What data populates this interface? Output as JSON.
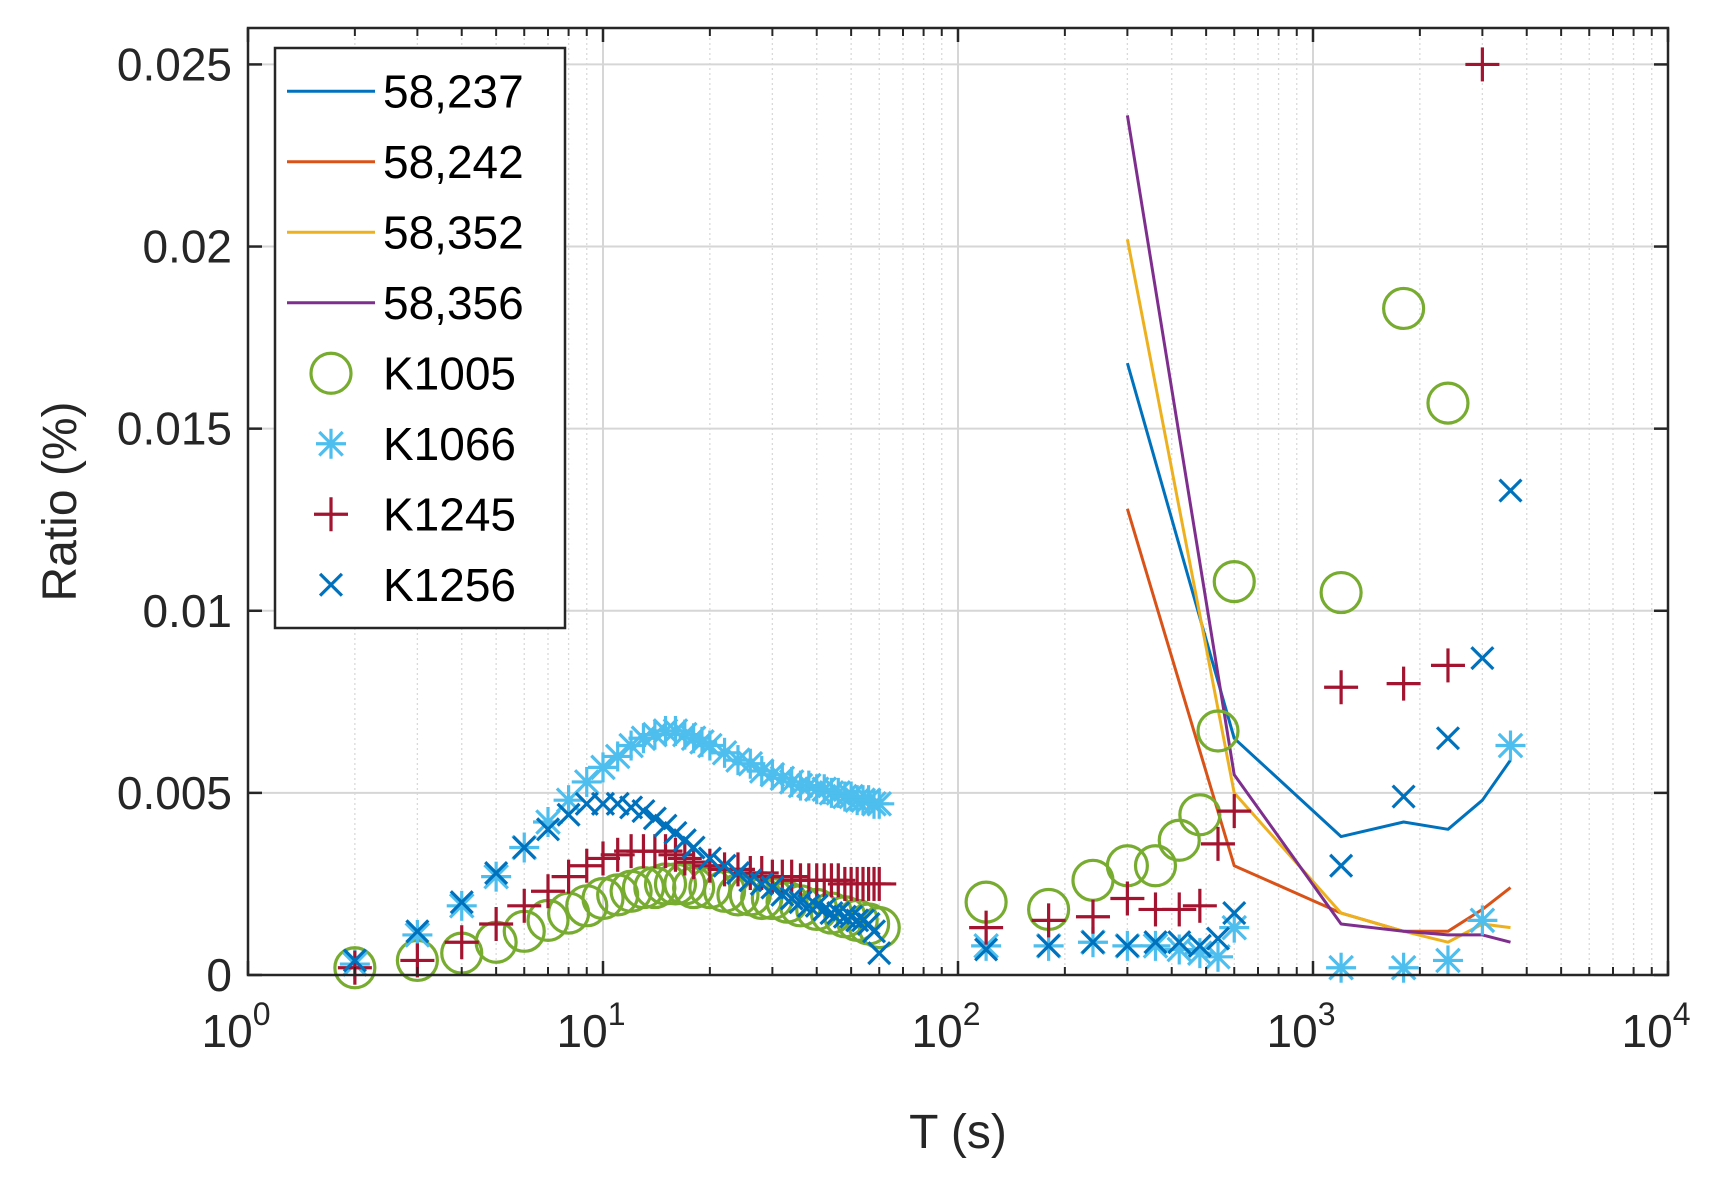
{
  "chart_data": {
    "type": "scatter",
    "title": "",
    "xlabel": "T (s)",
    "ylabel": "Ratio (%)",
    "xscale": "log",
    "xlim": [
      1,
      10000
    ],
    "ylim": [
      0,
      0.026
    ],
    "grid": true,
    "legend_position": "top-left",
    "xticks": [
      1,
      10,
      100,
      1000,
      10000
    ],
    "xtick_labels": [
      {
        "base": "10",
        "exp": "0"
      },
      {
        "base": "10",
        "exp": "1"
      },
      {
        "base": "10",
        "exp": "2"
      },
      {
        "base": "10",
        "exp": "3"
      },
      {
        "base": "10",
        "exp": "4"
      }
    ],
    "yticks": [
      0,
      0.005,
      0.01,
      0.015,
      0.02,
      0.025
    ],
    "ytick_labels": [
      "0",
      "0.005",
      "0.01",
      "0.015",
      "0.02",
      "0.025"
    ],
    "series": [
      {
        "name": "58,237",
        "kind": "line",
        "color": "#0072BD",
        "x": [
          300,
          600,
          1200,
          1800,
          2400,
          3000,
          3600
        ],
        "y": [
          0.0168,
          0.0065,
          0.0038,
          0.0042,
          0.004,
          0.0048,
          0.0059
        ]
      },
      {
        "name": "58,242",
        "kind": "line",
        "color": "#D95319",
        "x": [
          300,
          600,
          1200,
          1800,
          2400,
          3000,
          3600
        ],
        "y": [
          0.0128,
          0.003,
          0.0017,
          0.0012,
          0.0012,
          0.0018,
          0.0024
        ]
      },
      {
        "name": "58,352",
        "kind": "line",
        "color": "#EDB120",
        "x": [
          300,
          600,
          1200,
          1800,
          2400,
          3000,
          3600
        ],
        "y": [
          0.0202,
          0.005,
          0.0017,
          0.0012,
          0.0009,
          0.0014,
          0.0013
        ]
      },
      {
        "name": "58,356",
        "kind": "line",
        "color": "#7E2F8E",
        "x": [
          300,
          600,
          1200,
          1800,
          2400,
          3000,
          3600
        ],
        "y": [
          0.0236,
          0.0055,
          0.0014,
          0.0012,
          0.0011,
          0.0011,
          0.0009
        ]
      },
      {
        "name": "K1005",
        "kind": "marker",
        "marker": "circle",
        "color": "#77AC30",
        "x": [
          2,
          3,
          4,
          5,
          6,
          7,
          8,
          9,
          10,
          11,
          12,
          13,
          14,
          15,
          16,
          17,
          18,
          20,
          22,
          24,
          26,
          28,
          30,
          33,
          36,
          40,
          44,
          48,
          52,
          56,
          60,
          120,
          180,
          240,
          300,
          360,
          420,
          480,
          540,
          600,
          1200,
          1800,
          2400
        ],
        "y": [
          0.0002,
          0.0004,
          0.0006,
          0.0009,
          0.0012,
          0.0015,
          0.0017,
          0.0019,
          0.0021,
          0.0022,
          0.0023,
          0.0024,
          0.0024,
          0.0025,
          0.0025,
          0.0025,
          0.0024,
          0.0024,
          0.0023,
          0.0022,
          0.0022,
          0.0021,
          0.0021,
          0.002,
          0.0019,
          0.0018,
          0.0017,
          0.0016,
          0.0015,
          0.0014,
          0.0013,
          0.002,
          0.0018,
          0.0026,
          0.003,
          0.003,
          0.0037,
          0.0044,
          0.0067,
          0.0108,
          0.0105,
          0.0183,
          0.0157
        ]
      },
      {
        "name": "K1066",
        "kind": "marker",
        "marker": "asterisk",
        "color": "#4DBEEE",
        "x": [
          2,
          3,
          4,
          5,
          6,
          7,
          8,
          9,
          10,
          11,
          12,
          13,
          14,
          15,
          16,
          17,
          18,
          19,
          20,
          22,
          24,
          26,
          28,
          30,
          32,
          34,
          36,
          38,
          40,
          42,
          44,
          46,
          48,
          50,
          52,
          54,
          56,
          58,
          60,
          120,
          180,
          240,
          300,
          360,
          420,
          480,
          540,
          600,
          1200,
          1800,
          2400,
          3000,
          3600
        ],
        "y": [
          0.0003,
          0.0011,
          0.0019,
          0.0027,
          0.0035,
          0.0042,
          0.0048,
          0.0053,
          0.0057,
          0.006,
          0.0063,
          0.0065,
          0.0066,
          0.0067,
          0.0067,
          0.0066,
          0.0065,
          0.0064,
          0.0063,
          0.0061,
          0.0059,
          0.0058,
          0.0056,
          0.0055,
          0.0054,
          0.0053,
          0.0052,
          0.0052,
          0.0051,
          0.0051,
          0.005,
          0.005,
          0.0049,
          0.0049,
          0.0048,
          0.0048,
          0.0048,
          0.0047,
          0.0047,
          0.0008,
          0.0008,
          0.0009,
          0.0008,
          0.0008,
          0.0007,
          0.0006,
          0.0005,
          0.0013,
          0.0002,
          0.0002,
          0.0004,
          0.0015,
          0.0063
        ]
      },
      {
        "name": "K1245",
        "kind": "marker",
        "marker": "plus",
        "color": "#A2142F",
        "x": [
          2,
          3,
          4,
          5,
          6,
          7,
          8,
          9,
          10,
          11,
          12,
          13,
          14,
          15,
          16,
          17,
          18,
          20,
          22,
          24,
          26,
          28,
          30,
          32,
          34,
          36,
          38,
          40,
          42,
          44,
          46,
          48,
          50,
          52,
          54,
          56,
          58,
          60,
          120,
          180,
          240,
          300,
          360,
          420,
          480,
          540,
          600,
          1200,
          1800,
          2400,
          3000
        ],
        "y": [
          0.0002,
          0.0004,
          0.0009,
          0.0014,
          0.0019,
          0.0023,
          0.0027,
          0.003,
          0.0032,
          0.0033,
          0.0034,
          0.0034,
          0.0034,
          0.0034,
          0.0033,
          0.0032,
          0.0031,
          0.003,
          0.0029,
          0.0029,
          0.0028,
          0.0028,
          0.0027,
          0.0027,
          0.0027,
          0.0026,
          0.0026,
          0.0026,
          0.0026,
          0.0026,
          0.0026,
          0.0025,
          0.0025,
          0.0025,
          0.0025,
          0.0025,
          0.0025,
          0.0025,
          0.0013,
          0.0015,
          0.0016,
          0.0021,
          0.0018,
          0.0018,
          0.0019,
          0.0036,
          0.0045,
          0.0079,
          0.008,
          0.0085,
          0.025
        ]
      },
      {
        "name": "K1256",
        "kind": "marker",
        "marker": "cross",
        "color": "#0072BD",
        "x": [
          2,
          3,
          4,
          5,
          6,
          7,
          8,
          9,
          10,
          11,
          12,
          13,
          14,
          15,
          16,
          17,
          18,
          20,
          22,
          24,
          26,
          28,
          30,
          32,
          34,
          36,
          38,
          40,
          42,
          44,
          46,
          48,
          50,
          52,
          54,
          56,
          58,
          60,
          120,
          180,
          240,
          300,
          360,
          420,
          480,
          540,
          600,
          1200,
          1800,
          2400,
          3000,
          3600
        ],
        "y": [
          0.0004,
          0.0012,
          0.002,
          0.0028,
          0.0035,
          0.004,
          0.0044,
          0.0047,
          0.0047,
          0.0047,
          0.0046,
          0.0045,
          0.0043,
          0.0041,
          0.0039,
          0.0037,
          0.0035,
          0.0032,
          0.003,
          0.0028,
          0.0026,
          0.0025,
          0.0024,
          0.0022,
          0.0021,
          0.002,
          0.0019,
          0.0019,
          0.0018,
          0.0017,
          0.0017,
          0.0016,
          0.0016,
          0.0015,
          0.0015,
          0.0014,
          0.0012,
          0.0006,
          0.0007,
          0.0008,
          0.0009,
          0.0008,
          0.0009,
          0.0009,
          0.0008,
          0.001,
          0.0017,
          0.003,
          0.0049,
          0.0065,
          0.0087,
          0.0133
        ]
      }
    ]
  }
}
